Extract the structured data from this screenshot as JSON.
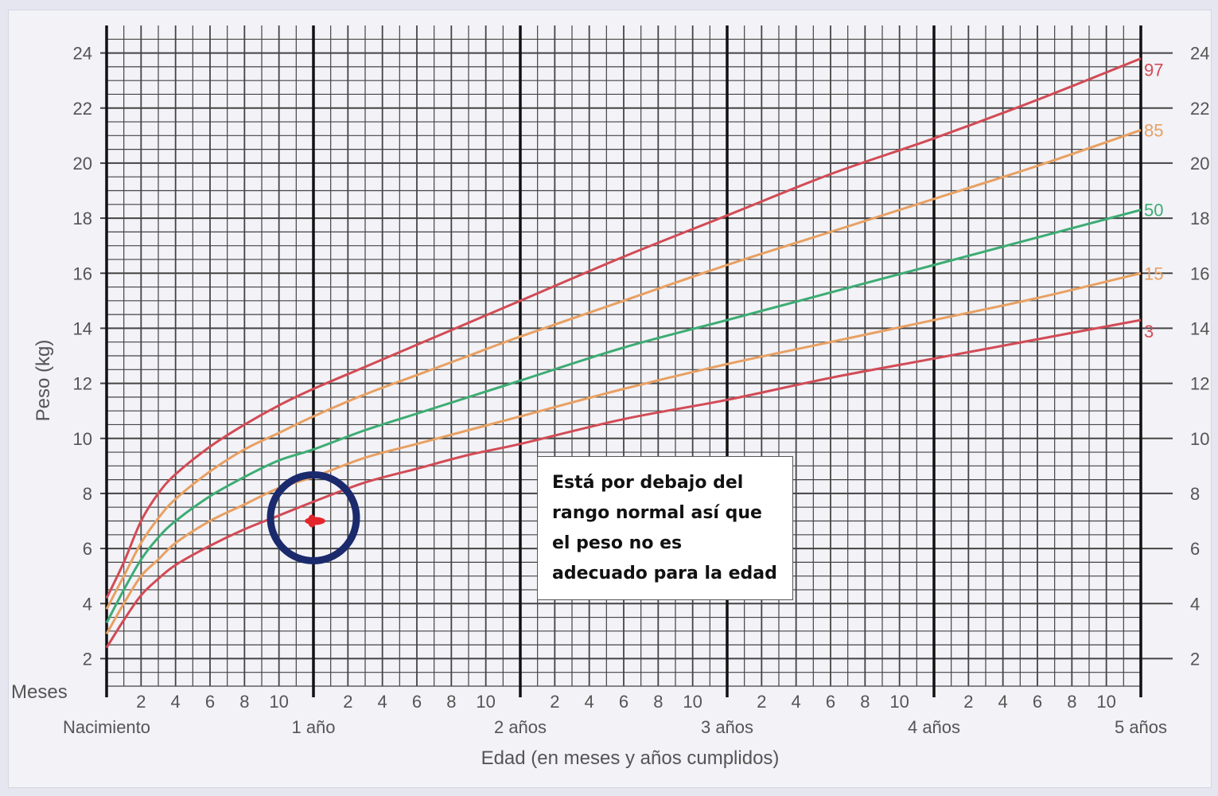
{
  "annotation": "Está por debajo del rango normal así que el peso no es adecuado para la edad",
  "chart_data": {
    "type": "line",
    "xlabel": "Edad (en meses y años cumplidos)",
    "ylabel": "Peso (kg)",
    "month_row_label": "Meses",
    "xlim": [
      0,
      60
    ],
    "ylim": [
      1,
      25
    ],
    "y_ticks": [
      2,
      4,
      6,
      8,
      10,
      12,
      14,
      16,
      18,
      20,
      22,
      24
    ],
    "month_ticks": [
      "2",
      "4",
      "6",
      "8",
      "10"
    ],
    "year_labels": [
      {
        "month": 0,
        "label": "Nacimiento"
      },
      {
        "month": 12,
        "label": "1 año"
      },
      {
        "month": 24,
        "label": "2 años"
      },
      {
        "month": 36,
        "label": "3 años"
      },
      {
        "month": 48,
        "label": "4 años"
      },
      {
        "month": 60,
        "label": "5 años"
      }
    ],
    "x": [
      0,
      1,
      2,
      3,
      4,
      6,
      8,
      10,
      12,
      15,
      18,
      21,
      24,
      30,
      36,
      42,
      48,
      54,
      60
    ],
    "series": [
      {
        "name": "97",
        "color": "#d24b55",
        "values": [
          4.2,
          5.5,
          7.0,
          8.0,
          8.7,
          9.7,
          10.5,
          11.2,
          11.8,
          12.6,
          13.4,
          14.2,
          15.0,
          16.6,
          18.1,
          19.6,
          20.9,
          22.3,
          23.8
        ]
      },
      {
        "name": "85",
        "color": "#e8a062",
        "values": [
          3.8,
          5.0,
          6.2,
          7.1,
          7.8,
          8.8,
          9.6,
          10.2,
          10.8,
          11.6,
          12.3,
          13.0,
          13.7,
          15.0,
          16.3,
          17.5,
          18.7,
          19.9,
          21.2
        ]
      },
      {
        "name": "50",
        "color": "#3dac73",
        "values": [
          3.3,
          4.5,
          5.6,
          6.4,
          7.0,
          7.9,
          8.6,
          9.2,
          9.6,
          10.3,
          10.9,
          11.5,
          12.1,
          13.3,
          14.3,
          15.3,
          16.3,
          17.3,
          18.3
        ]
      },
      {
        "name": "15",
        "color": "#e8a062",
        "values": [
          2.9,
          4.0,
          5.0,
          5.6,
          6.2,
          7.0,
          7.6,
          8.2,
          8.6,
          9.3,
          9.8,
          10.3,
          10.8,
          11.8,
          12.7,
          13.5,
          14.3,
          15.1,
          16.0
        ]
      },
      {
        "name": "3",
        "color": "#d24b55",
        "values": [
          2.4,
          3.4,
          4.3,
          4.9,
          5.4,
          6.1,
          6.7,
          7.2,
          7.7,
          8.4,
          8.9,
          9.4,
          9.8,
          10.7,
          11.4,
          12.2,
          12.9,
          13.6,
          14.3
        ]
      }
    ],
    "highlight_point": {
      "x": 12,
      "y": 7.0
    },
    "grid": true
  }
}
